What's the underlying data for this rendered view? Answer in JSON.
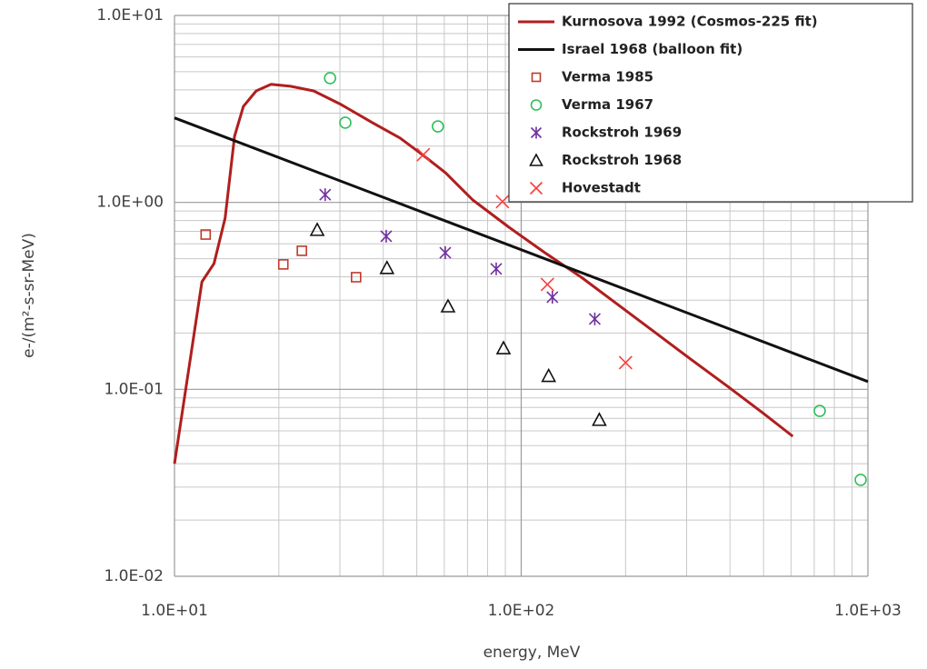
{
  "chart_data": {
    "type": "scatter",
    "x_label": "energy, MeV",
    "y_label": "e-/(m²-s-sr-MeV)",
    "xscale": "log",
    "yscale": "log",
    "grid": true,
    "legend": "top-right",
    "xlim": [
      10,
      1000
    ],
    "ylim": [
      0.01,
      10
    ],
    "xticks": [
      {
        "value": 10,
        "label": "1.0E+01"
      },
      {
        "value": 100,
        "label": "1.0E+02"
      },
      {
        "value": 1000,
        "label": "1.0E+03"
      }
    ],
    "yticks": [
      {
        "value": 0.01,
        "label": "1.0E-02"
      },
      {
        "value": 0.1,
        "label": "1.0E-01"
      },
      {
        "value": 1,
        "label": "1.0E+00"
      },
      {
        "value": 10,
        "label": "1.0E+01"
      }
    ],
    "xminorticks": [
      20,
      30,
      40,
      50,
      60,
      70,
      80,
      90,
      200,
      300,
      400,
      500,
      600,
      700,
      800,
      900
    ],
    "yminorticks": [
      0.02,
      0.03,
      0.04,
      0.05,
      0.06,
      0.07,
      0.08,
      0.09,
      0.2,
      0.3,
      0.4,
      0.5,
      0.6,
      0.7,
      0.8,
      0.9,
      2,
      3,
      4,
      5,
      6,
      7,
      8,
      9
    ],
    "series": [
      {
        "name": "Kurnosova 1992 (Cosmos-225 fit)",
        "color": "#b01e1e",
        "mode": "line",
        "x": [
          10,
          12,
          13,
          14,
          14.9,
          15.8,
          17.2,
          19,
          21.6,
          25.2,
          30.2,
          37.2,
          44.7,
          51.9,
          60.5,
          72.5,
          92.2,
          117,
          149,
          190,
          242,
          308,
          393,
          500,
          607
        ],
        "values": [
          0.04,
          0.376,
          0.471,
          0.824,
          2.26,
          3.26,
          3.95,
          4.28,
          4.18,
          3.95,
          3.34,
          2.67,
          2.21,
          1.8,
          1.44,
          1.03,
          0.736,
          0.538,
          0.398,
          0.284,
          0.203,
          0.145,
          0.104,
          0.0743,
          0.0561
        ]
      },
      {
        "name": "Israel 1968 (balloon fit)",
        "color": "#111111",
        "mode": "line",
        "x": [
          10,
          1000
        ],
        "values": [
          2.83,
          0.11
        ]
      },
      {
        "name": "Verma 1985",
        "color": "#c0392b",
        "mode": "marker",
        "marker": "square",
        "x": [
          12.3,
          20.6,
          23.3,
          33.4
        ],
        "values": [
          0.673,
          0.466,
          0.551,
          0.398
        ]
      },
      {
        "name": "Verma 1967",
        "color": "#2fbf5a",
        "mode": "marker",
        "marker": "circle",
        "x": [
          28.1,
          31.1,
          57.5,
          726,
          953
        ],
        "values": [
          4.62,
          2.67,
          2.55,
          0.0767,
          0.0328
        ]
      },
      {
        "name": "Rockstroh 1969",
        "color": "#7030a0",
        "mode": "marker",
        "marker": "asterisk",
        "x": [
          27.2,
          40.8,
          60.4,
          84.7,
          123,
          163
        ],
        "values": [
          1.1,
          0.659,
          0.538,
          0.441,
          0.311,
          0.238
        ]
      },
      {
        "name": "Rockstroh 1968",
        "color": "#111111",
        "mode": "marker",
        "marker": "triangle",
        "x": [
          25.8,
          41,
          61.5,
          88.9,
          120,
          168
        ],
        "values": [
          0.713,
          0.446,
          0.278,
          0.166,
          0.118,
          0.0687
        ]
      },
      {
        "name": "Hovestadt",
        "color": "#ff3b3b",
        "mode": "marker",
        "marker": "x",
        "x": [
          52.2,
          88.3,
          119,
          200
        ],
        "values": [
          1.8,
          1.01,
          0.364,
          0.139
        ]
      }
    ]
  }
}
